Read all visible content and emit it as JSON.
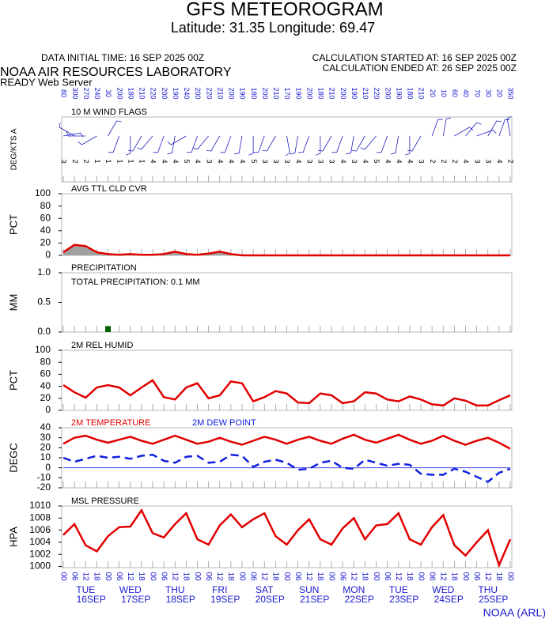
{
  "header": {
    "title": "GFS METEOROGRAM",
    "subtitle": "Latitude: 31.35 Longitude:  69.47",
    "data_time": "DATA INITIAL TIME: 16 SEP 2025 00Z",
    "calc_start": "CALCULATION STARTED AT: 16 SEP 2025 00Z",
    "calc_end": "CALCULATION ENDED AT: 26 SEP 2025 00Z",
    "org": "NOAA AIR RESOURCES LABORATORY",
    "server": "READY Web Server",
    "footer": "NOAA (ARL)"
  },
  "chart_data": [
    {
      "type": "wind",
      "title": "10 M  WIND FLAGS",
      "ylabel": "DEG/KTS  A",
      "color": "#2020c0",
      "directions": [
        80,
        300,
        270,
        240,
        30,
        200,
        180,
        210,
        220,
        200,
        190,
        240,
        200,
        220,
        210,
        200,
        190,
        180,
        200,
        210,
        170,
        190,
        200,
        180,
        210,
        200,
        190,
        210,
        220,
        200,
        190,
        180,
        210,
        20,
        10,
        60,
        40,
        70,
        30,
        20,
        350
      ],
      "speeds": [
        3,
        2,
        2,
        1,
        1,
        1,
        1,
        1,
        4,
        4,
        4,
        5,
        4,
        3,
        4,
        4,
        4,
        5,
        3,
        3,
        3,
        4,
        3,
        3,
        3,
        4,
        3,
        4,
        5,
        4,
        4,
        4,
        3,
        2,
        2,
        2,
        4,
        3,
        3,
        4,
        2
      ]
    },
    {
      "type": "area",
      "title": "AVG TTL CLD CVR",
      "ylabel": "PCT",
      "color": "#e00000",
      "fill": "#a0a0a0",
      "values": [
        5,
        17,
        15,
        5,
        2,
        1,
        2,
        1,
        1,
        2,
        6,
        2,
        1,
        3,
        6,
        2,
        0,
        0,
        0,
        0,
        0,
        0,
        0,
        0,
        0,
        0,
        0,
        0,
        0,
        0,
        0,
        0,
        0,
        0,
        0,
        0,
        0,
        0,
        0,
        0,
        0
      ],
      "ylim": [
        0,
        100
      ],
      "yticks": [
        0,
        20,
        40,
        60,
        80,
        100
      ]
    },
    {
      "type": "bar",
      "title": "PRECIPITATION",
      "annotation": "TOTAL PRECIPITATION:   0.1 MM",
      "ylabel": "MM",
      "color": "#006000",
      "values": [
        0,
        0,
        0,
        0,
        0.1,
        0,
        0,
        0,
        0,
        0,
        0,
        0,
        0,
        0,
        0,
        0,
        0,
        0,
        0,
        0,
        0,
        0,
        0,
        0,
        0,
        0,
        0,
        0,
        0,
        0,
        0,
        0,
        0,
        0,
        0,
        0,
        0,
        0,
        0,
        0,
        0
      ],
      "ylim": [
        0,
        1
      ],
      "yticks": [
        {
          "value": 0,
          "label": "0.0"
        },
        {
          "value": 0.5,
          "label": "0.5"
        },
        {
          "value": 1,
          "label": "1.0"
        }
      ]
    },
    {
      "type": "line",
      "title": "2M REL HUMID",
      "ylabel": "PCT",
      "color": "#e00000",
      "values": [
        42,
        30,
        21,
        38,
        42,
        38,
        25,
        38,
        50,
        22,
        18,
        38,
        45,
        20,
        25,
        48,
        45,
        15,
        22,
        32,
        28,
        13,
        12,
        28,
        25,
        12,
        15,
        30,
        28,
        18,
        15,
        23,
        18,
        10,
        8,
        20,
        16,
        8,
        8,
        17,
        25
      ],
      "ylim": [
        0,
        100
      ],
      "yticks": [
        0,
        20,
        40,
        60,
        80,
        100
      ]
    },
    {
      "type": "line",
      "ylabel": "DEGC",
      "zero_line": true,
      "series": [
        {
          "name": "2M TEMPERATURE",
          "color": "#e00000",
          "dash": false,
          "values": [
            24,
            30,
            32,
            28,
            25,
            28,
            31,
            27,
            24,
            28,
            32,
            28,
            24,
            26,
            30,
            26,
            23,
            27,
            31,
            28,
            24,
            28,
            31,
            27,
            24,
            29,
            33,
            28,
            25,
            29,
            33,
            28,
            24,
            27,
            32,
            27,
            23,
            27,
            30,
            25,
            19
          ]
        },
        {
          "name": "2M   DEW POINT",
          "color": "#1020e0",
          "dash": true,
          "values": [
            10,
            6,
            9,
            12,
            10,
            11,
            9,
            12,
            13,
            7,
            5,
            11,
            12,
            5,
            6,
            13,
            12,
            1,
            6,
            8,
            5,
            -2,
            -1,
            5,
            7,
            0,
            -1,
            8,
            5,
            2,
            4,
            3,
            -6,
            -7,
            -7,
            -1,
            -4,
            -9,
            -14,
            -5,
            -1
          ]
        }
      ],
      "ylim": [
        -20,
        40
      ],
      "yticks": [
        -20,
        -10,
        0,
        10,
        20,
        30,
        40
      ]
    },
    {
      "type": "line",
      "title": "MSL PRESSURE",
      "ylabel": "HPA",
      "color": "#e00000",
      "values": [
        1005.2,
        1007,
        1003.5,
        1002.5,
        1005,
        1006.5,
        1006.6,
        1009.3,
        1005.5,
        1004.8,
        1007,
        1008.8,
        1004.5,
        1003.6,
        1006.8,
        1008.6,
        1006.5,
        1007.8,
        1008.8,
        1005,
        1003.6,
        1006,
        1007.8,
        1004.5,
        1003.6,
        1006.3,
        1008,
        1004.5,
        1006.8,
        1007,
        1008.8,
        1004.5,
        1003.6,
        1006.5,
        1008.5,
        1003.5,
        1001.8,
        1004,
        1006,
        1000.2,
        1004.5
      ],
      "ylim": [
        999.8,
        1010
      ],
      "yticks": [
        1000,
        1002,
        1004,
        1006,
        1008,
        1010
      ],
      "categories": [
        "00",
        "06",
        "12",
        "18",
        "00",
        "06",
        "12",
        "18",
        "00",
        "06",
        "12",
        "18",
        "00",
        "06",
        "12",
        "18",
        "00",
        "06",
        "12",
        "18",
        "00",
        "06",
        "12",
        "18",
        "00",
        "06",
        "12",
        "18",
        "00",
        "06",
        "12",
        "18",
        "00",
        "06",
        "12",
        "18",
        "00",
        "06",
        "12",
        "18",
        "00"
      ],
      "days": [
        {
          "weekday": "TUE",
          "date": "16SEP"
        },
        {
          "weekday": "WED",
          "date": "17SEP"
        },
        {
          "weekday": "THU",
          "date": "18SEP"
        },
        {
          "weekday": "FRI",
          "date": "19SEP"
        },
        {
          "weekday": "SAT",
          "date": "20SEP"
        },
        {
          "weekday": "SUN",
          "date": "21SEP"
        },
        {
          "weekday": "MON",
          "date": "22SEP"
        },
        {
          "weekday": "TUE",
          "date": "23SEP"
        },
        {
          "weekday": "WED",
          "date": "24SEP"
        },
        {
          "weekday": "THU",
          "date": "25SEP"
        }
      ]
    }
  ]
}
